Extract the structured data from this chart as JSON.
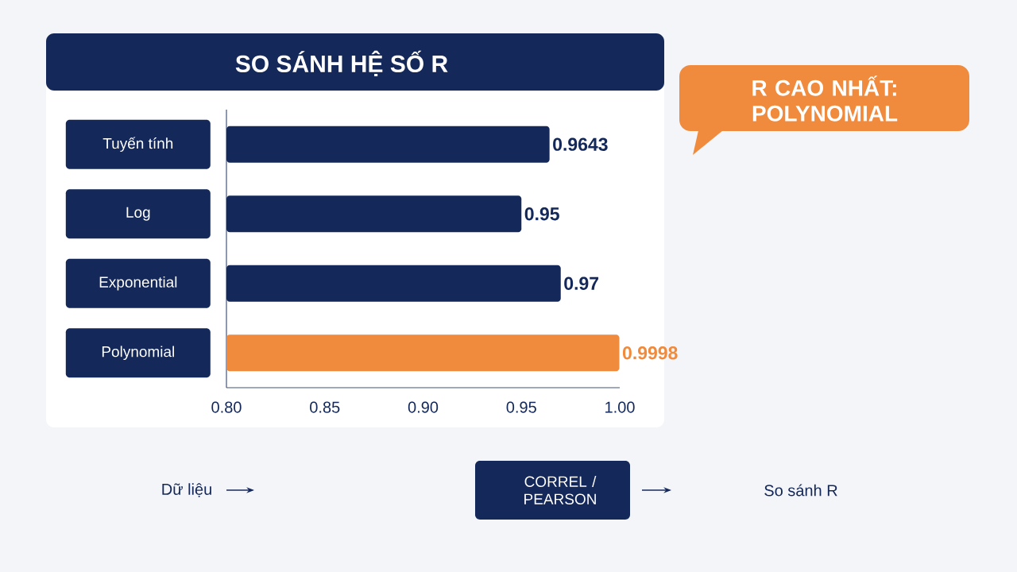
{
  "chart_data": {
    "type": "bar",
    "orientation": "horizontal",
    "title": "SO SÁNH HỆ SỐ R",
    "categories": [
      "Tuyến tính",
      "Log",
      "Exponential",
      "Polynomial"
    ],
    "values": [
      0.9643,
      0.95,
      0.97,
      0.9998
    ],
    "colors": [
      "#14285a",
      "#14285a",
      "#14285a",
      "#f08a3c"
    ],
    "xlim": [
      0.8,
      1.0
    ],
    "xticks": [
      {
        "value": 0.8,
        "label": "0.80"
      },
      {
        "value": 0.85,
        "label": "0.85"
      },
      {
        "value": 0.9,
        "label": "0.90"
      },
      {
        "value": 0.95,
        "label": "0.95"
      },
      {
        "value": 1.0,
        "label": "1.00"
      }
    ],
    "data_labels": true,
    "annotations": [
      "R CAO NHẤT: POLYNOMIAL",
      "Dữ liệu",
      "CORREL / PEARSON",
      "So sánh R"
    ]
  }
}
